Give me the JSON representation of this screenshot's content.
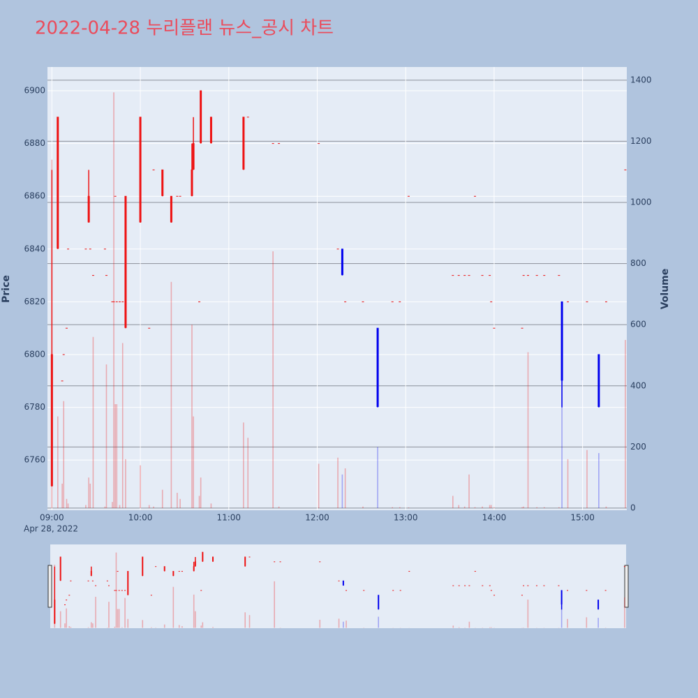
{
  "chart_data": {
    "type": "candlestick",
    "title": "2022-04-28 누리플랜 뉴스_공시 차트",
    "y_label": "Price",
    "y2_label": "Volume",
    "x_date_label": "Apr 28, 2022",
    "x": [
      "09:00",
      "09:04",
      "09:07",
      "09:08",
      "09:10",
      "09:11",
      "09:23",
      "09:25",
      "09:26",
      "09:28",
      "09:36",
      "09:37",
      "09:41",
      "09:42",
      "09:43",
      "09:44",
      "09:46",
      "09:48",
      "09:50",
      "10:00",
      "10:06",
      "10:09",
      "10:15",
      "10:21",
      "10:25",
      "10:27",
      "10:35",
      "10:36",
      "10:40",
      "10:41",
      "10:48",
      "11:10",
      "11:13",
      "11:30",
      "11:34",
      "12:01",
      "12:14",
      "12:17",
      "12:19",
      "12:31",
      "12:41",
      "12:51",
      "12:56",
      "13:02",
      "13:32",
      "13:36",
      "13:40",
      "13:43",
      "13:47",
      "13:52",
      "13:57",
      "13:58",
      "14:00",
      "14:19",
      "14:20",
      "14:23",
      "14:29",
      "14:34",
      "14:44",
      "14:46",
      "14:50",
      "15:03",
      "15:11",
      "15:16",
      "15:29"
    ],
    "open": [
      6750,
      6840,
      6790,
      6800,
      6810,
      6840,
      6840,
      6850,
      6840,
      6830,
      6840,
      6830,
      6820,
      6820,
      6860,
      6820,
      6820,
      6820,
      6810,
      6850,
      6810,
      6870,
      6860,
      6850,
      6860,
      6860,
      6860,
      6870,
      6820,
      6880,
      6880,
      6870,
      6890,
      6880,
      6880,
      6880,
      6840,
      6840,
      6820,
      6820,
      6810,
      6820,
      6820,
      6860,
      6830,
      6830,
      6830,
      6830,
      6860,
      6830,
      6830,
      6820,
      6810,
      6810,
      6830,
      6830,
      6830,
      6830,
      6830,
      6820,
      6820,
      6820,
      6800,
      6820,
      6870
    ],
    "high": [
      6870,
      6890,
      6790,
      6800,
      6810,
      6840,
      6840,
      6870,
      6840,
      6830,
      6840,
      6830,
      6820,
      6820,
      6860,
      6820,
      6820,
      6820,
      6860,
      6890,
      6810,
      6870,
      6870,
      6860,
      6860,
      6860,
      6880,
      6890,
      6820,
      6900,
      6890,
      6890,
      6890,
      6880,
      6880,
      6880,
      6840,
      6840,
      6820,
      6820,
      6810,
      6820,
      6820,
      6860,
      6830,
      6830,
      6830,
      6830,
      6860,
      6830,
      6830,
      6820,
      6810,
      6810,
      6830,
      6830,
      6830,
      6830,
      6830,
      6820,
      6820,
      6820,
      6800,
      6820,
      6870
    ],
    "low": [
      6750,
      6840,
      6790,
      6800,
      6810,
      6840,
      6840,
      6850,
      6840,
      6830,
      6840,
      6830,
      6820,
      6820,
      6860,
      6820,
      6820,
      6820,
      6810,
      6850,
      6810,
      6870,
      6860,
      6850,
      6860,
      6860,
      6860,
      6870,
      6820,
      6880,
      6880,
      6870,
      6890,
      6880,
      6880,
      6880,
      6840,
      6830,
      6820,
      6820,
      6780,
      6820,
      6820,
      6860,
      6830,
      6830,
      6830,
      6830,
      6860,
      6830,
      6830,
      6820,
      6810,
      6810,
      6830,
      6830,
      6830,
      6830,
      6830,
      6780,
      6820,
      6820,
      6780,
      6820,
      6870
    ],
    "close": [
      6800,
      6890,
      6790,
      6800,
      6810,
      6840,
      6840,
      6860,
      6840,
      6830,
      6840,
      6830,
      6820,
      6820,
      6860,
      6820,
      6820,
      6820,
      6860,
      6890,
      6810,
      6870,
      6870,
      6860,
      6860,
      6860,
      6870,
      6880,
      6820,
      6900,
      6890,
      6890,
      6890,
      6880,
      6880,
      6880,
      6840,
      6830,
      6820,
      6820,
      6780,
      6820,
      6820,
      6860,
      6830,
      6830,
      6830,
      6830,
      6860,
      6830,
      6830,
      6820,
      6810,
      6810,
      6830,
      6830,
      6830,
      6830,
      6830,
      6790,
      6820,
      6820,
      6780,
      6820,
      6870
    ],
    "volume": [
      1140,
      300,
      80,
      350,
      30,
      15,
      10,
      100,
      80,
      560,
      5,
      470,
      20,
      1360,
      340,
      340,
      10,
      540,
      160,
      140,
      10,
      5,
      60,
      740,
      50,
      30,
      600,
      300,
      40,
      100,
      15,
      280,
      230,
      840,
      5,
      145,
      165,
      110,
      130,
      5,
      200,
      3,
      3,
      2,
      40,
      10,
      5,
      110,
      3,
      5,
      10,
      10,
      3,
      3,
      5,
      510,
      3,
      3,
      3,
      520,
      160,
      190,
      180,
      5,
      550
    ],
    "increasing_color": "#ee1111",
    "decreasing_color": "#0000ee",
    "xlim": [
      "08:57",
      "15:30"
    ],
    "xticks": [
      "09:00",
      "10:00",
      "11:00",
      "12:00",
      "13:00",
      "14:00",
      "15:00"
    ],
    "ylim": [
      6741,
      6909
    ],
    "yticks": [
      6760,
      6780,
      6800,
      6820,
      6840,
      6860,
      6880,
      6900
    ],
    "y2lim": [
      -7,
      1443
    ],
    "y2ticks": [
      0,
      200,
      400,
      600,
      800,
      1000,
      1200,
      1400
    ],
    "rangeslider": true
  }
}
